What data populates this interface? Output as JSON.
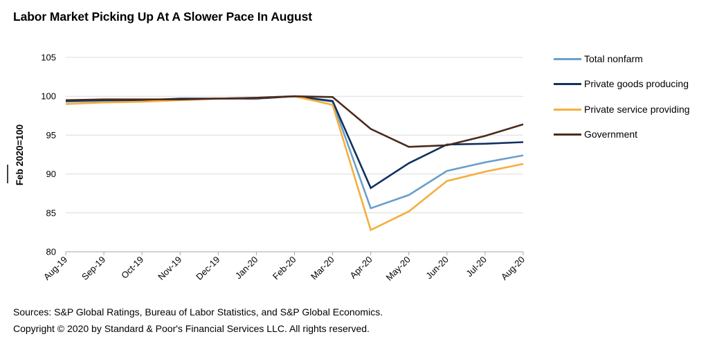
{
  "title": "Labor Market Picking Up At A Slower Pace In August",
  "footer": {
    "sources": "Sources: S&P Global Ratings, Bureau of Labor Statistics, and S&P Global Economics.",
    "copyright": "Copyright © 2020 by Standard & Poor's Financial Services LLC. All rights reserved."
  },
  "chart_data": {
    "type": "line",
    "title": "Labor Market Picking Up At A Slower Pace In August",
    "xlabel": "",
    "ylabel": "Feb 2020=100",
    "ylim": [
      80,
      105
    ],
    "yticks": [
      80,
      85,
      90,
      95,
      100,
      105
    ],
    "grid": true,
    "legend_position": "right",
    "categories": [
      "Aug-19",
      "Sep-19",
      "Oct-19",
      "Nov-19",
      "Dec-19",
      "Jan-20",
      "Feb-20",
      "Mar-20",
      "Apr-20",
      "May-20",
      "Jun-20",
      "Jul-20",
      "Aug-20"
    ],
    "series": [
      {
        "name": "Total nonfarm",
        "color": "#6a9fcb",
        "values": [
          99.3,
          99.4,
          99.5,
          99.6,
          99.7,
          99.8,
          100.0,
          99.3,
          85.6,
          87.3,
          90.4,
          91.5,
          92.4
        ]
      },
      {
        "name": "Private goods producing",
        "color": "#10305f",
        "values": [
          99.4,
          99.5,
          99.5,
          99.7,
          99.7,
          99.7,
          100.0,
          99.4,
          88.2,
          91.4,
          93.8,
          93.9,
          94.1
        ]
      },
      {
        "name": "Private service providing",
        "color": "#f5ae3c",
        "values": [
          99.0,
          99.2,
          99.3,
          99.5,
          99.7,
          99.8,
          100.0,
          98.9,
          82.8,
          85.2,
          89.1,
          90.3,
          91.3
        ]
      },
      {
        "name": "Government",
        "color": "#4b2a1c",
        "values": [
          99.5,
          99.6,
          99.6,
          99.6,
          99.7,
          99.8,
          100.0,
          99.9,
          95.8,
          93.5,
          93.7,
          94.9,
          96.4
        ]
      }
    ]
  }
}
